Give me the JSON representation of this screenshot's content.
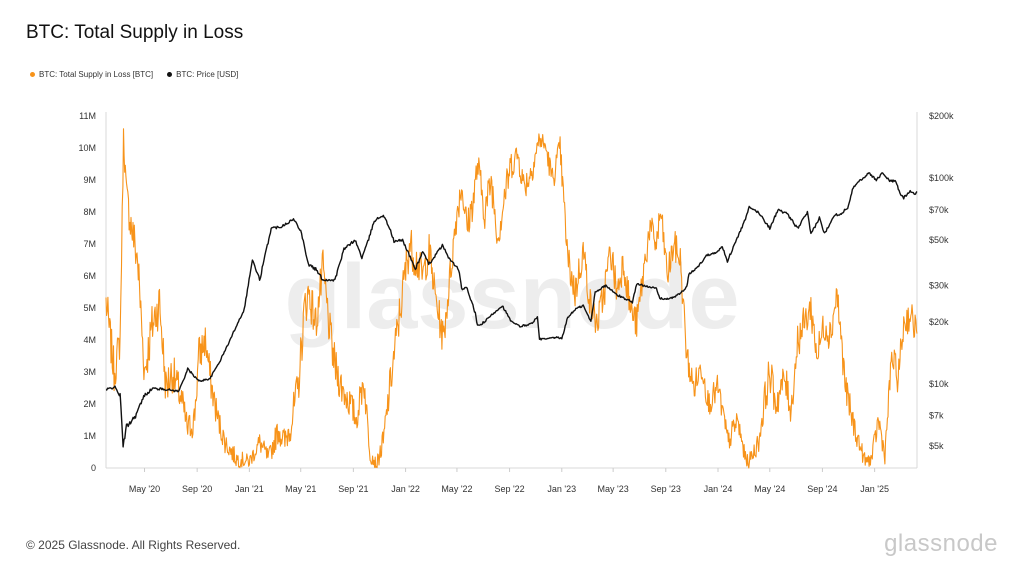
{
  "header": {
    "title": "BTC: Total Supply in Loss"
  },
  "legend": {
    "items": [
      {
        "label": "BTC: Total Supply in Loss [BTC]",
        "color": "#f7931a"
      },
      {
        "label": "BTC: Price [USD]",
        "color": "#111111"
      }
    ]
  },
  "footer": {
    "copyright": "© 2025 Glassnode. All Rights Reserved.",
    "brand": "glassnode"
  },
  "chart_data": {
    "type": "line",
    "title": "BTC: Total Supply in Loss",
    "x_ticks": [
      "May '20",
      "Sep '20",
      "Jan '21",
      "May '21",
      "Sep '21",
      "Jan '22",
      "May '22",
      "Sep '22",
      "Jan '23",
      "May '23",
      "Sep '23",
      "Jan '24",
      "May '24",
      "Sep '24",
      "Jan '25"
    ],
    "x_range": [
      "2020-02-01",
      "2025-04-10"
    ],
    "y_left": {
      "label": "",
      "range": [
        0,
        11000000
      ],
      "ticks": [
        0,
        1000000,
        2000000,
        3000000,
        4000000,
        5000000,
        6000000,
        7000000,
        8000000,
        9000000,
        10000000,
        11000000
      ],
      "tick_labels": [
        "0",
        "1M",
        "2M",
        "3M",
        "4M",
        "5M",
        "6M",
        "7M",
        "8M",
        "9M",
        "10M",
        "11M"
      ]
    },
    "y_right": {
      "label": "",
      "scale": "log",
      "ticks": [
        5000,
        7000,
        10000,
        20000,
        30000,
        50000,
        70000,
        100000,
        200000
      ],
      "tick_labels": [
        "$5k",
        "$7k",
        "$10k",
        "$20k",
        "$30k",
        "$50k",
        "$70k",
        "$100k",
        "$200k"
      ]
    },
    "series": [
      {
        "name": "BTC: Total Supply in Loss [BTC]",
        "color": "#f7931a",
        "axis": "left",
        "x": [
          "2020-02-01",
          "2020-02-20",
          "2020-03-05",
          "2020-03-13",
          "2020-03-20",
          "2020-04-01",
          "2020-04-15",
          "2020-05-01",
          "2020-05-20",
          "2020-06-05",
          "2020-06-20",
          "2020-07-05",
          "2020-07-25",
          "2020-08-10",
          "2020-08-25",
          "2020-09-05",
          "2020-09-20",
          "2020-10-05",
          "2020-10-20",
          "2020-11-05",
          "2020-12-01",
          "2021-01-01",
          "2021-01-25",
          "2021-02-15",
          "2021-03-10",
          "2021-03-25",
          "2021-04-10",
          "2021-04-25",
          "2021-05-10",
          "2021-05-20",
          "2021-06-05",
          "2021-06-22",
          "2021-07-10",
          "2021-07-20",
          "2021-08-05",
          "2021-08-25",
          "2021-09-08",
          "2021-09-25",
          "2021-10-10",
          "2021-10-25",
          "2021-11-10",
          "2021-11-25",
          "2021-12-10",
          "2021-12-25",
          "2022-01-10",
          "2022-01-25",
          "2022-02-10",
          "2022-02-25",
          "2022-03-10",
          "2022-03-30",
          "2022-04-15",
          "2022-05-01",
          "2022-05-12",
          "2022-05-25",
          "2022-06-10",
          "2022-06-18",
          "2022-07-05",
          "2022-07-20",
          "2022-08-05",
          "2022-08-20",
          "2022-09-05",
          "2022-09-20",
          "2022-10-05",
          "2022-10-20",
          "2022-11-10",
          "2022-11-25",
          "2022-12-10",
          "2022-12-28",
          "2023-01-15",
          "2023-02-01",
          "2023-02-20",
          "2023-03-10",
          "2023-03-25",
          "2023-04-10",
          "2023-04-25",
          "2023-05-10",
          "2023-05-25",
          "2023-06-10",
          "2023-06-25",
          "2023-07-10",
          "2023-07-25",
          "2023-08-10",
          "2023-08-20",
          "2023-09-05",
          "2023-09-20",
          "2023-10-05",
          "2023-10-20",
          "2023-11-05",
          "2023-11-25",
          "2023-12-10",
          "2024-01-01",
          "2024-01-15",
          "2024-01-25",
          "2024-02-15",
          "2024-03-05",
          "2024-03-13",
          "2024-04-05",
          "2024-04-20",
          "2024-05-01",
          "2024-05-15",
          "2024-06-05",
          "2024-06-20",
          "2024-07-05",
          "2024-07-20",
          "2024-08-05",
          "2024-08-20",
          "2024-09-05",
          "2024-09-20",
          "2024-10-05",
          "2024-10-25",
          "2024-11-10",
          "2024-11-25",
          "2024-12-10",
          "2024-12-25",
          "2025-01-10",
          "2025-01-25",
          "2025-02-10",
          "2025-02-25",
          "2025-03-10",
          "2025-03-25",
          "2025-04-10"
        ],
        "values": [
          5200000,
          3000000,
          4000000,
          10400000,
          8500000,
          7500000,
          6500000,
          3000000,
          4500000,
          5200000,
          2500000,
          3000000,
          2200000,
          1200000,
          1500000,
          3500000,
          4000000,
          2500000,
          1500000,
          800000,
          300000,
          200000,
          800000,
          300000,
          1200000,
          800000,
          1500000,
          2500000,
          5000000,
          5500000,
          4500000,
          6200000,
          4000000,
          3200000,
          2500000,
          2000000,
          1500000,
          2800000,
          500000,
          100000,
          800000,
          2500000,
          4000000,
          5500000,
          7000000,
          6500000,
          6000000,
          6800000,
          5500000,
          4000000,
          6000000,
          8000000,
          8800000,
          7500000,
          8500000,
          9500000,
          8000000,
          9000000,
          7200000,
          8500000,
          9500000,
          9800000,
          8800000,
          9200000,
          10300000,
          10000000,
          9000000,
          10000000,
          6500000,
          5500000,
          6800000,
          5000000,
          4500000,
          5500000,
          6800000,
          5500000,
          6500000,
          5000000,
          4500000,
          6000000,
          7500000,
          7000000,
          8000000,
          6000000,
          7000000,
          6500000,
          3500000,
          2500000,
          3200000,
          2000000,
          2500000,
          1500000,
          800000,
          1500000,
          300000,
          200000,
          800000,
          2200000,
          3000000,
          2000000,
          2800000,
          1800000,
          4000000,
          4500000,
          5000000,
          3500000,
          4500000,
          4200000,
          5500000,
          2500000,
          1500000,
          800000,
          200000,
          300000,
          1500000,
          400000,
          3500000,
          2800000,
          4500000,
          4800000,
          4200000
        ],
        "amplitude": [
          1200000,
          1200000,
          1000000,
          600000,
          1000000,
          1200000,
          1400000,
          1200000,
          1400000,
          1300000,
          1200000,
          1200000,
          1000000,
          800000,
          1000000,
          1200000,
          1000000,
          1000000,
          800000,
          600000,
          500000,
          400000,
          600000,
          500000,
          800000,
          800000,
          1000000,
          1200000,
          1200000,
          1200000,
          1200000,
          1200000,
          1200000,
          1100000,
          1000000,
          900000,
          800000,
          1000000,
          600000,
          300000,
          800000,
          1000000,
          1200000,
          1200000,
          1200000,
          1100000,
          1000000,
          1000000,
          1000000,
          1000000,
          1000000,
          1000000,
          800000,
          900000,
          1000000,
          1000000,
          1000000,
          1000000,
          1000000,
          1000000,
          900000,
          800000,
          800000,
          900000,
          600000,
          600000,
          800000,
          700000,
          1000000,
          1000000,
          1000000,
          900000,
          900000,
          1000000,
          1000000,
          1000000,
          1000000,
          900000,
          900000,
          1000000,
          900000,
          900000,
          800000,
          900000,
          900000,
          900000,
          900000,
          800000,
          900000,
          700000,
          800000,
          700000,
          600000,
          800000,
          400000,
          400000,
          600000,
          1000000,
          1100000,
          900000,
          1000000,
          900000,
          1100000,
          1000000,
          1000000,
          1000000,
          1000000,
          1000000,
          1000000,
          900000,
          800000,
          600000,
          400000,
          400000,
          800000,
          500000,
          900000,
          900000,
          1000000,
          900000,
          1000000
        ]
      },
      {
        "name": "BTC: Price [USD]",
        "color": "#111111",
        "axis": "right",
        "x": [
          "2020-02-01",
          "2020-02-20",
          "2020-03-05",
          "2020-03-12",
          "2020-03-20",
          "2020-04-10",
          "2020-05-01",
          "2020-05-20",
          "2020-06-20",
          "2020-07-20",
          "2020-08-10",
          "2020-09-05",
          "2020-10-01",
          "2020-10-25",
          "2020-11-15",
          "2020-12-01",
          "2020-12-20",
          "2021-01-08",
          "2021-01-25",
          "2021-02-10",
          "2021-02-21",
          "2021-03-15",
          "2021-04-14",
          "2021-05-01",
          "2021-05-19",
          "2021-06-05",
          "2021-06-22",
          "2021-07-20",
          "2021-08-10",
          "2021-09-05",
          "2021-09-21",
          "2021-10-05",
          "2021-10-20",
          "2021-11-10",
          "2021-11-25",
          "2021-12-05",
          "2021-12-25",
          "2022-01-10",
          "2022-01-24",
          "2022-02-10",
          "2022-02-24",
          "2022-03-28",
          "2022-04-15",
          "2022-05-05",
          "2022-05-12",
          "2022-05-25",
          "2022-06-13",
          "2022-06-18",
          "2022-07-05",
          "2022-07-25",
          "2022-08-15",
          "2022-09-05",
          "2022-09-25",
          "2022-10-20",
          "2022-11-05",
          "2022-11-10",
          "2022-11-25",
          "2022-12-20",
          "2023-01-01",
          "2023-01-15",
          "2023-02-01",
          "2023-02-20",
          "2023-03-10",
          "2023-03-20",
          "2023-04-14",
          "2023-05-10",
          "2023-06-15",
          "2023-06-25",
          "2023-07-15",
          "2023-08-10",
          "2023-08-18",
          "2023-09-10",
          "2023-10-05",
          "2023-10-20",
          "2023-10-25",
          "2023-11-15",
          "2023-12-05",
          "2024-01-01",
          "2024-01-11",
          "2024-01-23",
          "2024-02-15",
          "2024-03-05",
          "2024-03-14",
          "2024-04-05",
          "2024-05-01",
          "2024-05-20",
          "2024-06-10",
          "2024-07-05",
          "2024-07-28",
          "2024-08-05",
          "2024-08-25",
          "2024-09-06",
          "2024-09-28",
          "2024-10-15",
          "2024-10-30",
          "2024-11-12",
          "2024-11-25",
          "2024-12-05",
          "2024-12-17",
          "2025-01-05",
          "2025-01-20",
          "2025-02-05",
          "2025-02-20",
          "2025-03-01",
          "2025-03-10",
          "2025-03-25",
          "2025-04-05",
          "2025-04-10"
        ],
        "values": [
          9300,
          9700,
          8800,
          5000,
          6200,
          7000,
          8800,
          9500,
          9400,
          9200,
          11800,
          10300,
          10600,
          13000,
          16000,
          19000,
          23000,
          40000,
          32000,
          45000,
          57000,
          58000,
          63000,
          56000,
          38000,
          36000,
          32000,
          32000,
          45000,
          50000,
          41000,
          49000,
          62000,
          66000,
          57000,
          49000,
          50000,
          42000,
          36000,
          44000,
          38000,
          47000,
          40000,
          36000,
          29000,
          29000,
          22000,
          19000,
          20000,
          22000,
          24000,
          20000,
          19000,
          19500,
          21000,
          16500,
          16500,
          16800,
          16600,
          21000,
          23000,
          24000,
          20000,
          28000,
          30000,
          27000,
          25000,
          30500,
          30000,
          29000,
          26000,
          25800,
          27500,
          29500,
          34000,
          37000,
          42000,
          44000,
          46500,
          39500,
          51000,
          63000,
          72000,
          68000,
          57000,
          70000,
          67000,
          57000,
          68000,
          53000,
          64000,
          53500,
          66000,
          67000,
          72000,
          90000,
          97000,
          99000,
          106000,
          98000,
          106000,
          97000,
          96000,
          84000,
          80000,
          87000,
          83000,
          86000
        ],
        "amplitude": [
          500,
          500,
          600,
          400,
          500,
          500,
          500,
          400,
          300,
          300,
          400,
          300,
          300,
          400,
          500,
          600,
          800,
          2000,
          2000,
          2500,
          2500,
          2500,
          2500,
          3000,
          2000,
          2000,
          1500,
          1500,
          2000,
          2000,
          2000,
          2500,
          2500,
          2500,
          2500,
          2000,
          2000,
          1800,
          1800,
          1800,
          1800,
          1800,
          1800,
          1500,
          1200,
          1200,
          1000,
          800,
          800,
          800,
          800,
          700,
          600,
          600,
          600,
          500,
          400,
          400,
          400,
          800,
          800,
          800,
          800,
          1000,
          1000,
          900,
          900,
          900,
          800,
          800,
          700,
          700,
          800,
          900,
          1000,
          1200,
          1400,
          1500,
          1500,
          1500,
          1800,
          2500,
          2500,
          2500,
          2500,
          2500,
          2500,
          2500,
          2500,
          2500,
          2500,
          2500,
          2500,
          2500,
          2800,
          3000,
          3500,
          3500,
          3500,
          3500,
          3500,
          3500,
          3500,
          3000,
          3000,
          3000,
          2800,
          2800
        ],
        "note": "values are monthly approximate anchors read from the chart"
      }
    ],
    "grid": false,
    "legend": "top-left"
  }
}
